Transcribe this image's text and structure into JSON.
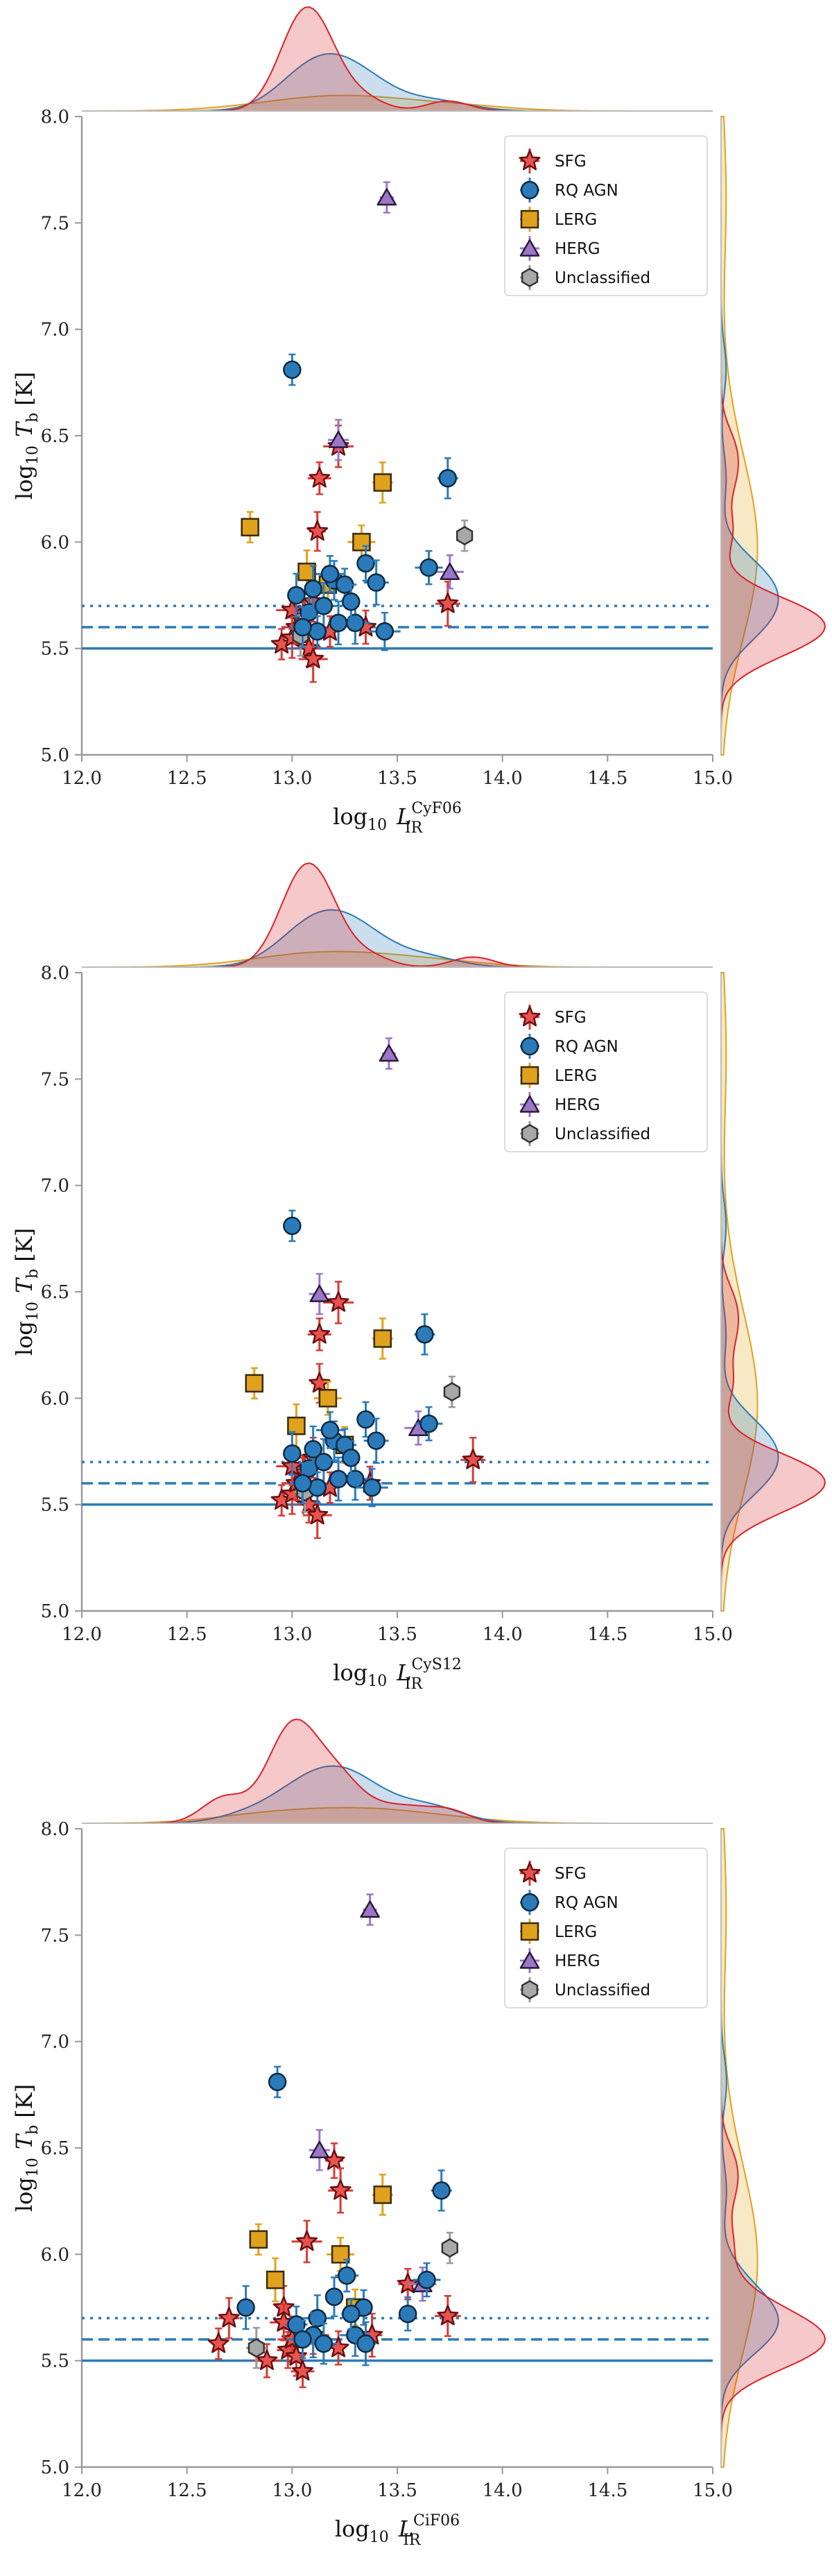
{
  "chart_data": [
    {
      "type": "scatter",
      "xlabel": "log10 L_IR^CyF06",
      "xlabel_sup": "CyF06",
      "ylabel": "log10 T_b [K]",
      "xlim": [
        12.0,
        15.0
      ],
      "ylim": [
        5.0,
        8.0
      ],
      "xticks": [
        "12.0",
        "12.5",
        "13.0",
        "13.5",
        "14.0",
        "14.5",
        "15.0"
      ],
      "yticks": [
        "5.0",
        "5.5",
        "6.0",
        "6.5",
        "7.0",
        "7.5",
        "8.0"
      ],
      "hlines": [
        5.5,
        5.6,
        5.7
      ],
      "legend": [
        "SFG",
        "RQ AGN",
        "LERG",
        "HERG",
        "Unclassified"
      ],
      "series": [
        {
          "name": "SFG",
          "points": [
            [
              12.95,
              5.52
            ],
            [
              13.0,
              5.55
            ],
            [
              13.02,
              5.6
            ],
            [
              13.05,
              5.63
            ],
            [
              13.08,
              5.5
            ],
            [
              13.1,
              5.45
            ],
            [
              13.12,
              6.05
            ],
            [
              13.13,
              6.3
            ],
            [
              13.22,
              6.45
            ],
            [
              13.06,
              5.65
            ],
            [
              13.74,
              5.71
            ],
            [
              13.0,
              5.68
            ],
            [
              13.18,
              5.58
            ],
            [
              13.1,
              5.72
            ],
            [
              13.35,
              5.6
            ]
          ]
        },
        {
          "name": "RQ AGN",
          "points": [
            [
              13.0,
              6.81
            ],
            [
              13.74,
              6.3
            ],
            [
              13.65,
              5.88
            ],
            [
              13.02,
              5.75
            ],
            [
              13.08,
              5.67
            ],
            [
              13.15,
              5.7
            ],
            [
              13.2,
              5.82
            ],
            [
              13.25,
              5.8
            ],
            [
              13.3,
              5.62
            ],
            [
              13.35,
              5.9
            ],
            [
              13.4,
              5.81
            ],
            [
              13.44,
              5.58
            ],
            [
              13.12,
              5.58
            ],
            [
              13.05,
              5.6
            ],
            [
              13.28,
              5.72
            ],
            [
              13.22,
              5.62
            ],
            [
              13.18,
              5.85
            ],
            [
              13.1,
              5.78
            ]
          ]
        },
        {
          "name": "LERG",
          "points": [
            [
              12.8,
              6.07
            ],
            [
              13.43,
              6.28
            ],
            [
              13.33,
              6.0
            ],
            [
              13.07,
              5.86
            ],
            [
              13.17,
              5.8
            ]
          ]
        },
        {
          "name": "HERG",
          "points": [
            [
              13.45,
              7.62
            ],
            [
              13.22,
              6.48
            ],
            [
              13.75,
              5.86
            ]
          ]
        },
        {
          "name": "Unclassified",
          "points": [
            [
              13.82,
              6.03
            ],
            [
              13.04,
              5.56
            ]
          ]
        }
      ]
    },
    {
      "type": "scatter",
      "xlabel": "log10 L_IR^CyS12",
      "xlabel_sup": "CyS12",
      "ylabel": "log10 T_b [K]",
      "xlim": [
        12.0,
        15.0
      ],
      "ylim": [
        5.0,
        8.0
      ],
      "xticks": [
        "12.0",
        "12.5",
        "13.0",
        "13.5",
        "14.0",
        "14.5",
        "15.0"
      ],
      "yticks": [
        "5.0",
        "5.5",
        "6.0",
        "6.5",
        "7.0",
        "7.5",
        "8.0"
      ],
      "hlines": [
        5.5,
        5.6,
        5.7
      ],
      "legend": [
        "SFG",
        "RQ AGN",
        "LERG",
        "HERG",
        "Unclassified"
      ],
      "series": [
        {
          "name": "SFG",
          "points": [
            [
              12.95,
              5.52
            ],
            [
              13.0,
              5.55
            ],
            [
              13.02,
              5.6
            ],
            [
              13.05,
              5.63
            ],
            [
              13.08,
              5.5
            ],
            [
              13.12,
              5.45
            ],
            [
              13.13,
              6.07
            ],
            [
              13.13,
              6.3
            ],
            [
              13.22,
              6.45
            ],
            [
              13.06,
              5.65
            ],
            [
              13.86,
              5.71
            ],
            [
              13.0,
              5.68
            ],
            [
              13.18,
              5.58
            ],
            [
              13.1,
              5.72
            ],
            [
              13.37,
              5.6
            ]
          ]
        },
        {
          "name": "RQ AGN",
          "points": [
            [
              13.0,
              6.81
            ],
            [
              13.63,
              6.3
            ],
            [
              13.65,
              5.88
            ],
            [
              13.0,
              5.74
            ],
            [
              13.08,
              5.67
            ],
            [
              13.15,
              5.7
            ],
            [
              13.2,
              5.8
            ],
            [
              13.25,
              5.78
            ],
            [
              13.3,
              5.62
            ],
            [
              13.35,
              5.9
            ],
            [
              13.4,
              5.8
            ],
            [
              13.38,
              5.58
            ],
            [
              13.12,
              5.58
            ],
            [
              13.05,
              5.6
            ],
            [
              13.28,
              5.72
            ],
            [
              13.22,
              5.62
            ],
            [
              13.18,
              5.85
            ],
            [
              13.1,
              5.76
            ]
          ]
        },
        {
          "name": "LERG",
          "points": [
            [
              12.82,
              6.07
            ],
            [
              13.43,
              6.28
            ],
            [
              13.17,
              6.0
            ],
            [
              13.02,
              5.87
            ],
            [
              13.25,
              5.78
            ]
          ]
        },
        {
          "name": "HERG",
          "points": [
            [
              13.46,
              7.62
            ],
            [
              13.13,
              6.49
            ],
            [
              13.6,
              5.86
            ]
          ]
        },
        {
          "name": "Unclassified",
          "points": [
            [
              13.76,
              6.03
            ],
            [
              13.06,
              5.56
            ]
          ]
        }
      ]
    },
    {
      "type": "scatter",
      "xlabel": "log10 L_IR^CiF06",
      "xlabel_sup": "CiF06",
      "ylabel": "log10 T_b [K]",
      "xlim": [
        12.0,
        15.0
      ],
      "ylim": [
        5.0,
        8.0
      ],
      "xticks": [
        "12.0",
        "12.5",
        "13.0",
        "13.5",
        "14.0",
        "14.5",
        "15.0"
      ],
      "yticks": [
        "5.0",
        "5.5",
        "6.0",
        "6.5",
        "7.0",
        "7.5",
        "8.0"
      ],
      "hlines": [
        5.5,
        5.6,
        5.7
      ],
      "legend": [
        "SFG",
        "RQ AGN",
        "LERG",
        "HERG",
        "Unclassified"
      ],
      "series": [
        {
          "name": "SFG",
          "points": [
            [
              12.65,
              5.58
            ],
            [
              12.7,
              5.7
            ],
            [
              12.88,
              5.5
            ],
            [
              12.96,
              5.75
            ],
            [
              12.98,
              5.55
            ],
            [
              13.0,
              5.6
            ],
            [
              13.02,
              5.52
            ],
            [
              13.05,
              5.45
            ],
            [
              13.07,
              6.06
            ],
            [
              13.2,
              6.44
            ],
            [
              13.23,
              6.3
            ],
            [
              13.1,
              5.62
            ],
            [
              13.55,
              5.86
            ],
            [
              13.74,
              5.71
            ],
            [
              13.22,
              5.56
            ],
            [
              13.38,
              5.62
            ],
            [
              12.96,
              5.68
            ]
          ]
        },
        {
          "name": "RQ AGN",
          "points": [
            [
              12.93,
              6.81
            ],
            [
              13.71,
              6.3
            ],
            [
              13.64,
              5.88
            ],
            [
              12.78,
              5.75
            ],
            [
              13.02,
              5.67
            ],
            [
              13.12,
              5.7
            ],
            [
              13.2,
              5.8
            ],
            [
              13.26,
              5.9
            ],
            [
              13.3,
              5.62
            ],
            [
              13.34,
              5.75
            ],
            [
              13.1,
              5.62
            ],
            [
              13.05,
              5.6
            ],
            [
              13.28,
              5.72
            ],
            [
              13.15,
              5.58
            ],
            [
              13.55,
              5.72
            ],
            [
              13.35,
              5.58
            ]
          ]
        },
        {
          "name": "LERG",
          "points": [
            [
              12.84,
              6.07
            ],
            [
              13.43,
              6.28
            ],
            [
              13.23,
              6.0
            ],
            [
              12.92,
              5.88
            ],
            [
              13.3,
              5.75
            ]
          ]
        },
        {
          "name": "HERG",
          "points": [
            [
              13.37,
              7.62
            ],
            [
              13.13,
              6.49
            ],
            [
              13.62,
              5.86
            ]
          ]
        },
        {
          "name": "Unclassified",
          "points": [
            [
              13.75,
              6.03
            ],
            [
              12.83,
              5.56
            ]
          ]
        }
      ]
    }
  ],
  "colors": {
    "SFG": "#e8534f",
    "SFG_edge": "#6a0f0f",
    "SFG_err": "#d83a35",
    "RQ AGN": "#2b7bba",
    "RQ AGN_err": "#2b7bba",
    "LERG": "#e0a21d",
    "LERG_err": "#e0a21d",
    "HERG": "#9b77c6",
    "HERG_err": "#9b77c6",
    "Unclassified": "#a8a8a8",
    "Unclassified_err": "#9a9a9a",
    "hline": "#2c7bb6",
    "kde_red": "#d9232a",
    "kde_blue": "#2c7bb6"
  },
  "labels": {
    "log10": "log",
    "log10_sub": "10",
    "L": "L",
    "IR": "IR",
    "T": "T",
    "b": "b",
    "unit": "[K]"
  }
}
